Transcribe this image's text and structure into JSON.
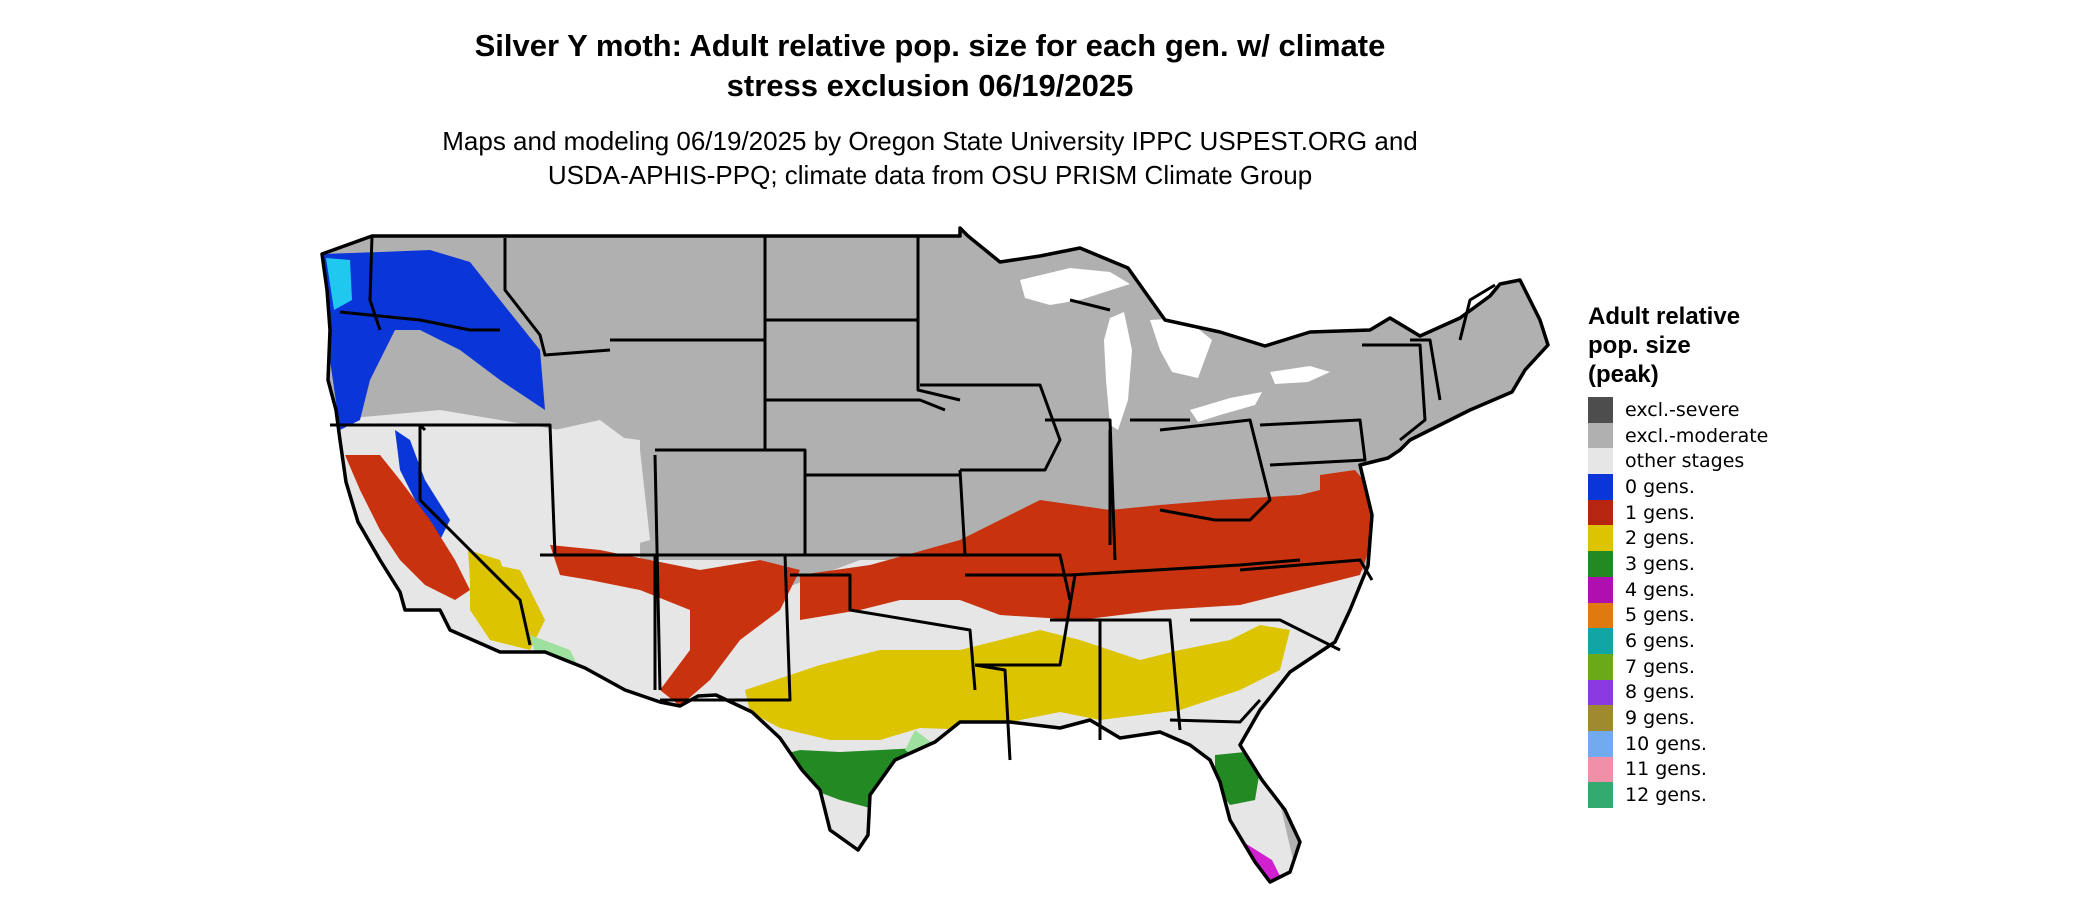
{
  "title": {
    "line1": "Silver Y moth: Adult relative pop. size for each gen. w/ climate",
    "line2": "stress exclusion 06/19/2025"
  },
  "subtitle": {
    "line1": "Maps and modeling 06/19/2025 by Oregon State University IPPC USPEST.ORG and",
    "line2": "USDA-APHIS-PPQ; climate data from OSU PRISM Climate Group"
  },
  "legend": {
    "title_lines": [
      "Adult relative",
      "pop. size",
      "(peak)"
    ],
    "items": [
      {
        "label": "excl.-severe",
        "color": "#4d4d4d"
      },
      {
        "label": "excl.-moderate",
        "color": "#b0b0b0"
      },
      {
        "label": "other stages",
        "color": "#e6e6e6"
      },
      {
        "label": "0 gens.",
        "color": "#0a35d8"
      },
      {
        "label": "1 gens.",
        "color": "#b52510"
      },
      {
        "label": "2 gens.",
        "color": "#dcc400"
      },
      {
        "label": "3 gens.",
        "color": "#238a23"
      },
      {
        "label": "4 gens.",
        "color": "#b00fb0"
      },
      {
        "label": "5 gens.",
        "color": "#e07a10"
      },
      {
        "label": "6 gens.",
        "color": "#12a5a5"
      },
      {
        "label": "7 gens.",
        "color": "#6aaa18"
      },
      {
        "label": "8 gens.",
        "color": "#8a3ae0"
      },
      {
        "label": "9 gens.",
        "color": "#a08a30"
      },
      {
        "label": "10 gens.",
        "color": "#72aaf0"
      },
      {
        "label": "11 gens.",
        "color": "#f090a8"
      },
      {
        "label": "12 gens.",
        "color": "#33aa70"
      }
    ]
  },
  "map": {
    "colors": {
      "excluded": "#b0b0b0",
      "other": "#e6e6e6",
      "gen0": "#0a35d8",
      "gen1": "#c8320f",
      "gen2": "#dcc400",
      "gen3": "#238a23",
      "gen4": "#d020d0",
      "light_green": "#9ee09e",
      "cyan": "#20c8f0",
      "border": "#000000"
    }
  }
}
